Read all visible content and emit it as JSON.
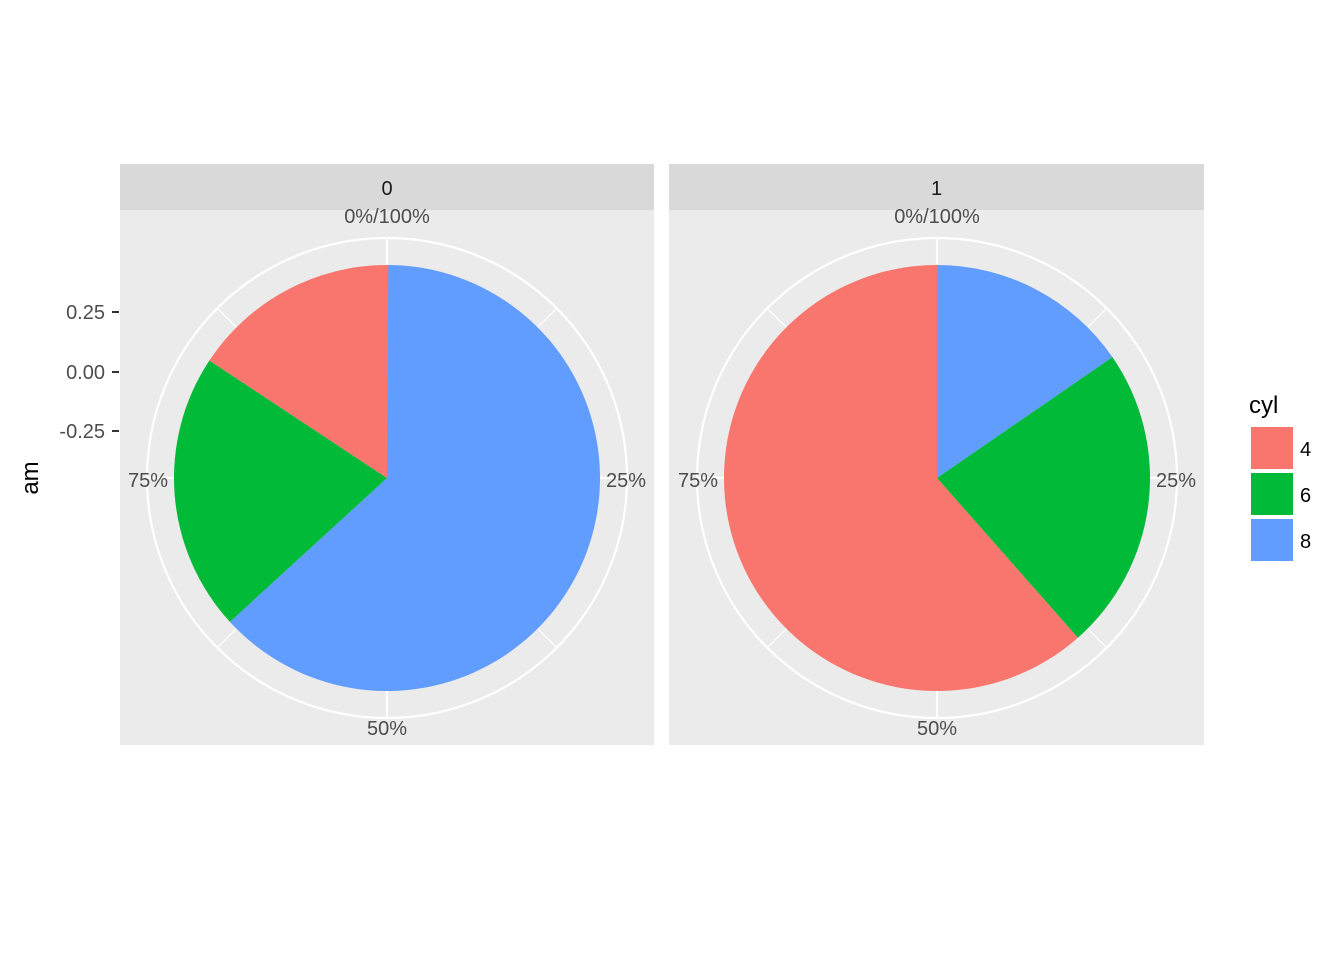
{
  "chart_data": {
    "type": "pie",
    "ylabel": "am",
    "y_ticks": [
      "0.25",
      "0.00",
      "-0.25"
    ],
    "theta_labels": [
      "0%/100%",
      "25%",
      "50%",
      "75%"
    ],
    "legend": {
      "title": "cyl",
      "placement": "right",
      "entries": [
        {
          "label": "4",
          "color": "#F8766D"
        },
        {
          "label": "6",
          "color": "#00BA38"
        },
        {
          "label": "8",
          "color": "#619CFF"
        }
      ]
    },
    "panels": [
      {
        "strip": "0",
        "slices": [
          {
            "label": "8",
            "fraction": 0.632
          },
          {
            "label": "6",
            "fraction": 0.211
          },
          {
            "label": "4",
            "fraction": 0.158
          }
        ]
      },
      {
        "strip": "1",
        "slices": [
          {
            "label": "8",
            "fraction": 0.154
          },
          {
            "label": "6",
            "fraction": 0.231
          },
          {
            "label": "4",
            "fraction": 0.615
          }
        ]
      }
    ]
  }
}
